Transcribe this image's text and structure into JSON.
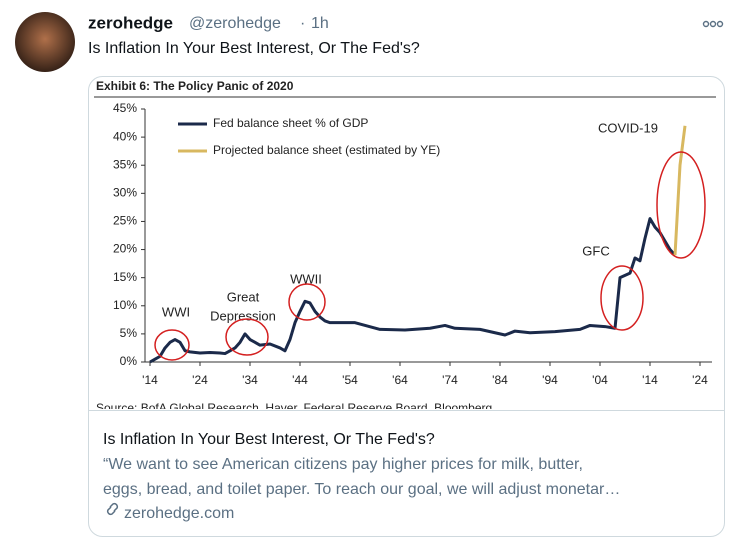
{
  "tweet": {
    "display_name": "zerohedge",
    "handle": "@zerohedge",
    "separator": "·",
    "time": "1h",
    "text": "Is Inflation In Your Best Interest, Or The Fed's?"
  },
  "chart_data": {
    "type": "line",
    "title": "Exhibit 6: The Policy Panic of 2020",
    "source": "Source: BofA Global Research, Haver, Federal Reserve Board, Bloomberg",
    "x": [
      1914,
      1915,
      1916,
      1917,
      1918,
      1919,
      1920,
      1921,
      1922,
      1924,
      1926,
      1928,
      1929,
      1930,
      1931,
      1932,
      1933,
      1934,
      1936,
      1938,
      1940,
      1941,
      1942,
      1943,
      1944,
      1945,
      1946,
      1947,
      1948,
      1949,
      1950,
      1955,
      1960,
      1965,
      1970,
      1973,
      1975,
      1980,
      1985,
      1987,
      1990,
      1995,
      2000,
      2002,
      2005,
      2007,
      2008,
      2010,
      2011,
      2012,
      2013,
      2014,
      2015,
      2016,
      2017,
      2018,
      2019,
      2020,
      2021
    ],
    "series": [
      {
        "name": "Fed balance sheet % of GDP",
        "color": "#1b2a4a",
        "values": [
          0,
          0.5,
          1,
          2.5,
          3.5,
          4,
          3.5,
          2,
          1.8,
          1.6,
          1.7,
          1.6,
          1.5,
          2,
          2.5,
          3.5,
          5,
          4,
          3,
          3.2,
          2.5,
          2,
          4,
          7,
          9,
          10.8,
          10.5,
          9,
          8,
          7.3,
          7,
          7,
          5.8,
          5.7,
          6,
          6.5,
          6,
          5.8,
          4.8,
          5.5,
          5.2,
          5.4,
          5.8,
          6.5,
          6.3,
          6,
          15,
          15.8,
          18.5,
          18,
          22,
          25.5,
          24,
          23,
          21.5,
          20,
          19,
          null,
          null
        ]
      },
      {
        "name": "Projected balance sheet (estimated by YE)",
        "color": "#d8b860",
        "values": [
          null,
          null,
          null,
          null,
          null,
          null,
          null,
          null,
          null,
          null,
          null,
          null,
          null,
          null,
          null,
          null,
          null,
          null,
          null,
          null,
          null,
          null,
          null,
          null,
          null,
          null,
          null,
          null,
          null,
          null,
          null,
          null,
          null,
          null,
          null,
          null,
          null,
          null,
          null,
          null,
          null,
          null,
          null,
          null,
          null,
          null,
          null,
          null,
          null,
          null,
          null,
          null,
          null,
          null,
          null,
          null,
          19,
          35,
          42
        ]
      }
    ],
    "xlim": [
      1914,
      2026
    ],
    "xticks": [
      {
        "value": 1914,
        "label": "'14"
      },
      {
        "value": 1924,
        "label": "'24"
      },
      {
        "value": 1934,
        "label": "'34"
      },
      {
        "value": 1944,
        "label": "'44"
      },
      {
        "value": 1954,
        "label": "'54"
      },
      {
        "value": 1964,
        "label": "'64"
      },
      {
        "value": 1974,
        "label": "'74"
      },
      {
        "value": 1984,
        "label": "'84"
      },
      {
        "value": 1994,
        "label": "'94"
      },
      {
        "value": 2004,
        "label": "'04"
      },
      {
        "value": 2014,
        "label": "'14"
      },
      {
        "value": 2024,
        "label": "'24"
      }
    ],
    "ylim": [
      0,
      45
    ],
    "yticks": [
      {
        "value": 0,
        "label": "0%"
      },
      {
        "value": 5,
        "label": "5%"
      },
      {
        "value": 10,
        "label": "10%"
      },
      {
        "value": 15,
        "label": "15%"
      },
      {
        "value": 20,
        "label": "20%"
      },
      {
        "value": 25,
        "label": "25%"
      },
      {
        "value": 30,
        "label": "30%"
      },
      {
        "value": 35,
        "label": "35%"
      },
      {
        "value": 40,
        "label": "40%"
      },
      {
        "value": 45,
        "label": "45%"
      }
    ],
    "annotations": [
      {
        "label": [
          "WWI"
        ]
      },
      {
        "label": [
          "Great",
          "Depression"
        ]
      },
      {
        "label": [
          "WWII"
        ]
      },
      {
        "label": [
          "GFC"
        ]
      },
      {
        "label": [
          "COVID-19"
        ]
      }
    ]
  },
  "card": {
    "title": "Is Inflation In Your Best Interest, Or The Fed's?",
    "description": [
      "“We want to see American citizens pay higher prices for milk, butter,",
      "eggs, bread, and toilet paper. To reach our goal, we will adjust monetar…"
    ],
    "domain": "zerohedge.com"
  }
}
